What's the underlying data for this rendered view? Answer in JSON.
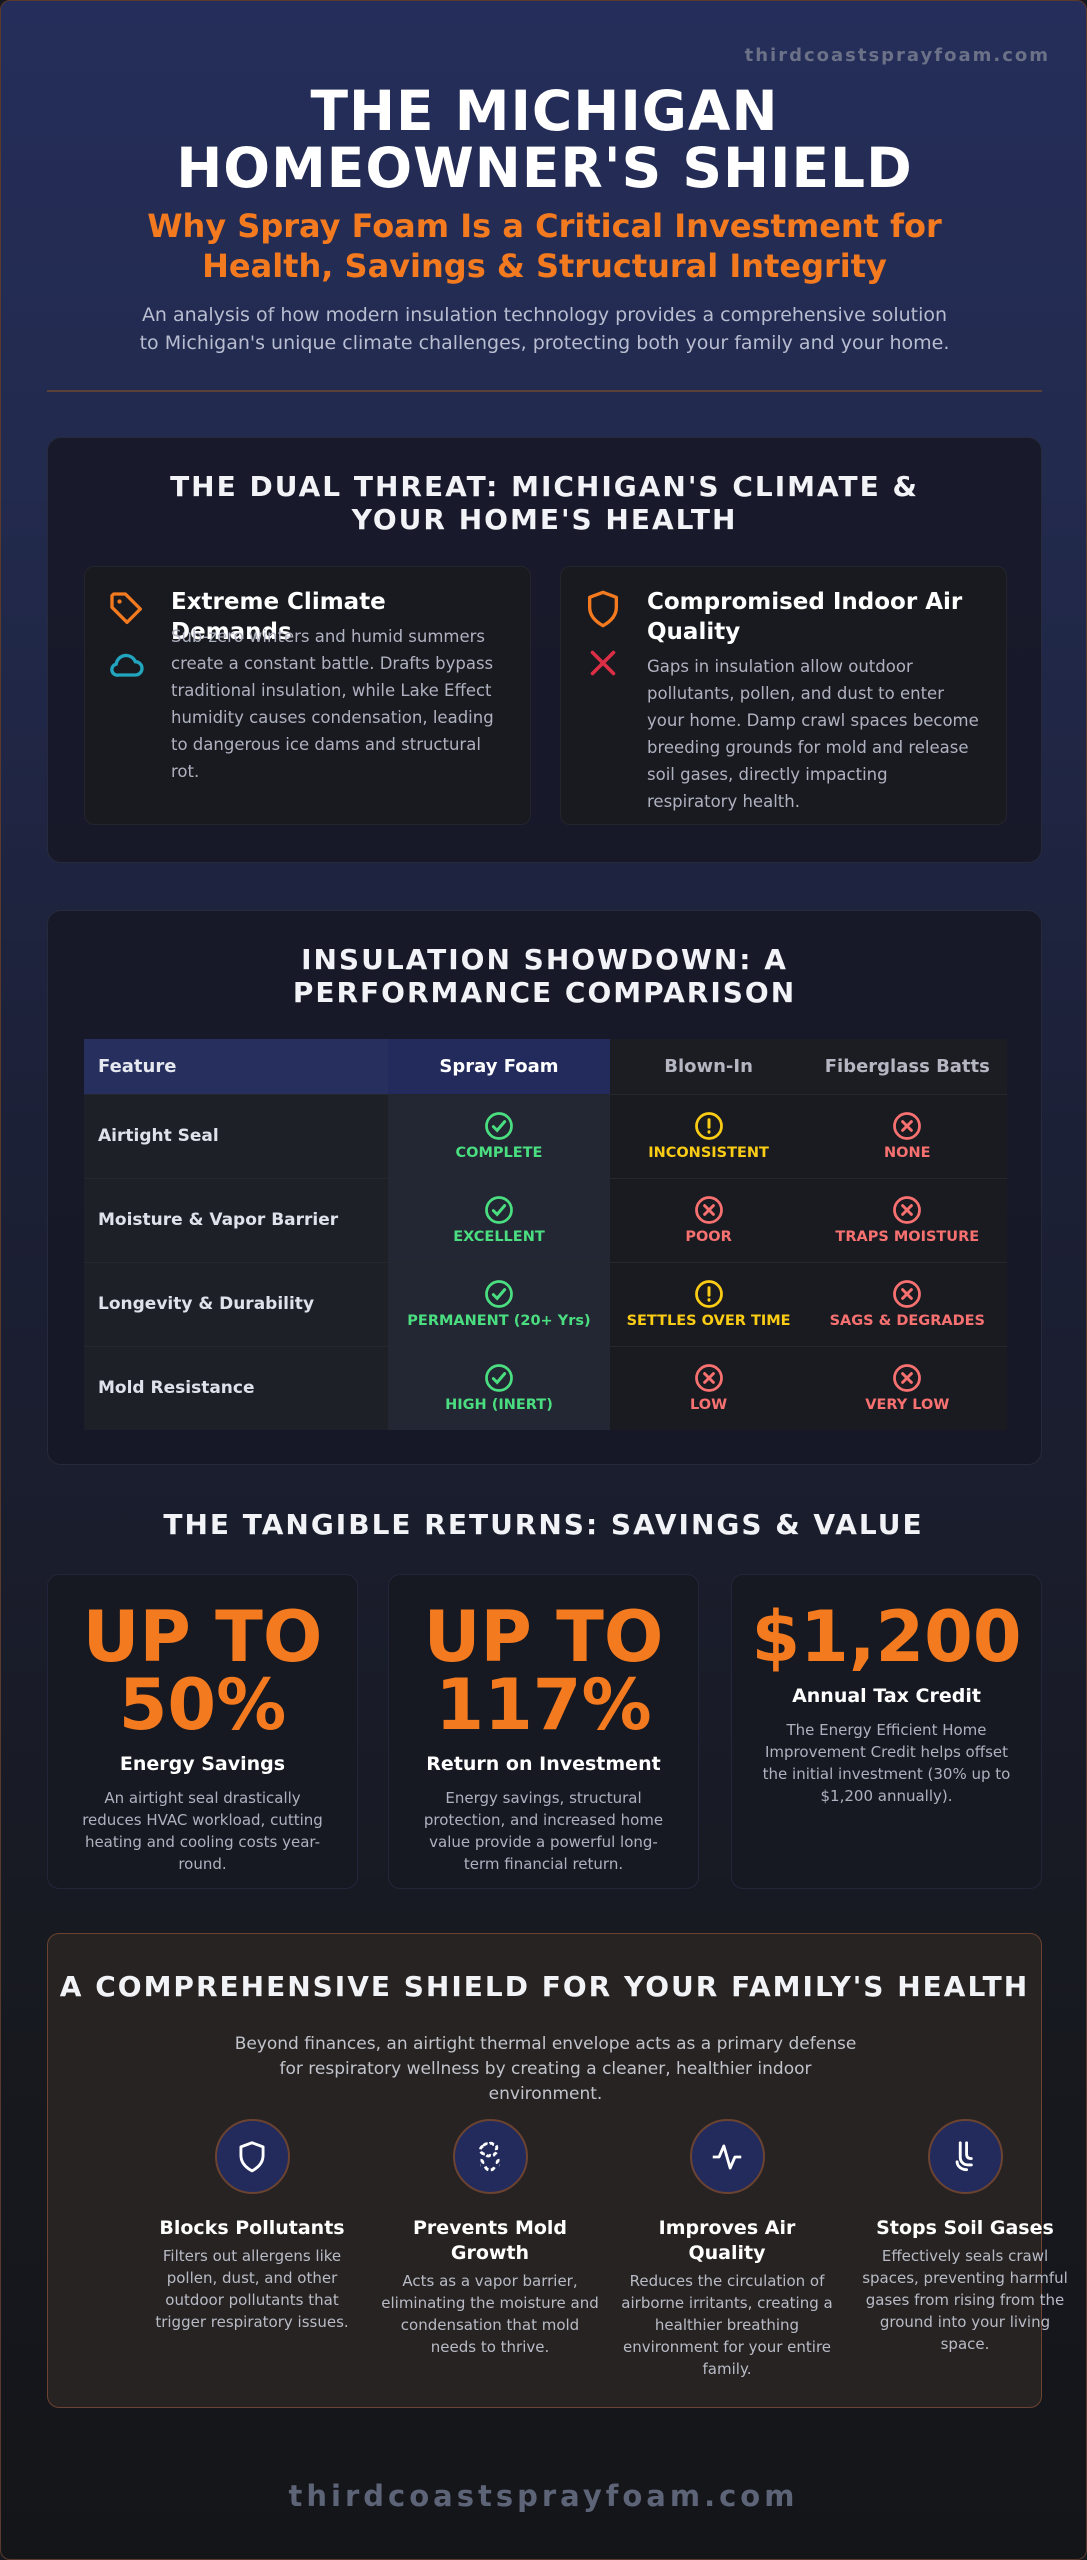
{
  "header": {
    "site": "thirdcoastsprayfoam.com",
    "title": "THE MICHIGAN HOMEOWNER'S SHIELD",
    "subtitle": "Why Spray Foam Is a Critical Investment for Health, Savings & Structural Integrity",
    "intro": "An analysis of how modern insulation technology provides a comprehensive solution to Michigan's unique climate challenges, protecting both your family and your home."
  },
  "threat": {
    "title": "THE DUAL THREAT: MICHIGAN'S CLIMATE & YOUR HOME'S HEALTH",
    "cards": [
      {
        "title": "Extreme Climate Demands",
        "text": "Sub-zero winters and humid summers create a constant battle. Drafts bypass traditional insulation, while Lake Effect humidity causes condensation, leading to dangerous ice dams and structural rot."
      },
      {
        "title": "Compromised Indoor Air Quality",
        "text": "Gaps in insulation allow outdoor pollutants, pollen, and dust to enter your home. Damp crawl spaces become breeding grounds for mold and release soil gases, directly impacting respiratory health."
      }
    ]
  },
  "comparison": {
    "title": "INSULATION SHOWDOWN: A PERFORMANCE COMPARISON",
    "columns": [
      "Feature",
      "Spray Foam",
      "Blown-In",
      "Fiberglass Batts"
    ],
    "rows": [
      [
        "Airtight Seal",
        "COMPLETE",
        "INCONSISTENT",
        "NONE"
      ],
      [
        "Moisture & Vapor Barrier",
        "EXCELLENT",
        "POOR",
        "TRAPS MOISTURE"
      ],
      [
        "Longevity & Durability",
        "PERMANENT (20+ Yrs)",
        "SETTLES OVER TIME",
        "SAGS & DEGRADES"
      ],
      [
        "Mold Resistance",
        "HIGH (INERT)",
        "LOW",
        "VERY LOW"
      ]
    ]
  },
  "returns": {
    "title": "THE TANGIBLE RETURNS: SAVINGS & VALUE",
    "cards": [
      {
        "value": "UP TO 50%",
        "label": "Energy Savings",
        "text": "An airtight seal drastically reduces HVAC workload, cutting heating and cooling costs year-round."
      },
      {
        "value": "UP TO 117%",
        "label": "Return on Investment",
        "text": "Energy savings, structural protection, and increased home value provide a powerful long-term financial return."
      },
      {
        "value": "$1,200",
        "label": "Annual Tax Credit",
        "text": "The Energy Efficient Home Improvement Credit helps offset the initial investment (30% up to $1,200 annually)."
      }
    ]
  },
  "health": {
    "title": "A COMPREHENSIVE SHIELD FOR YOUR FAMILY'S HEALTH",
    "intro": "Beyond finances, an airtight thermal envelope acts as a primary defense for respiratory wellness by creating a cleaner, healthier indoor environment.",
    "items": [
      {
        "title": "Blocks Pollutants",
        "text": "Filters out allergens like pollen, dust, and other outdoor pollutants that trigger respiratory issues."
      },
      {
        "title": "Prevents Mold Growth",
        "text": "Acts as a vapor barrier, eliminating the moisture and condensation that mold needs to thrive."
      },
      {
        "title": "Improves Air Quality",
        "text": "Reduces the circulation of airborne irritants, creating a healthier breathing environment for your entire family."
      },
      {
        "title": "Stops Soil Gases",
        "text": "Effectively seals crawl spaces, preventing harmful gases from rising from the ground into your living space."
      }
    ]
  },
  "footer": "thirdcoastsprayfoam.com"
}
